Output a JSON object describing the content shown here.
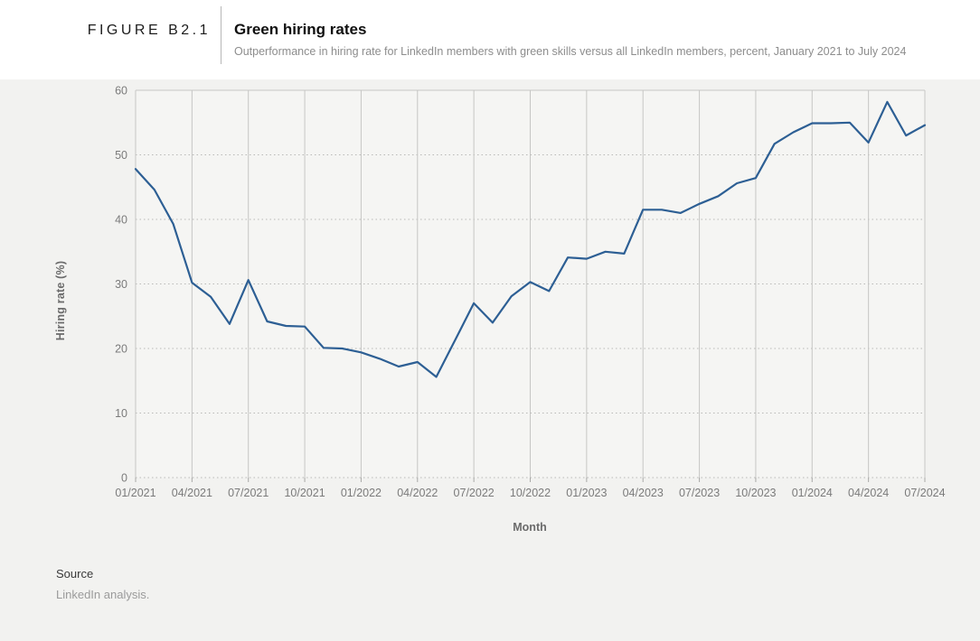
{
  "header": {
    "figure_label": "FIGURE B2.1",
    "title": "Green hiring rates",
    "subtitle": "Outperformance in hiring rate for LinkedIn members with green skills versus all LinkedIn members, percent, January 2021 to July 2024"
  },
  "source": {
    "label": "Source",
    "text": "LinkedIn analysis."
  },
  "colors": {
    "line": "#2d5f94",
    "panel_bg": "#f2f2f0",
    "plot_bg": "#f5f5f3",
    "solid_grid": "#c6c6c4",
    "dotted_grid": "#b9b9b7",
    "tick_text": "#7b7b7b"
  },
  "chart_data": {
    "type": "line",
    "title": "Green hiring rates",
    "xlabel": "Month",
    "ylabel": "Hiring rate (%)",
    "ylim": [
      0,
      60
    ],
    "y_ticks": [
      0,
      10,
      20,
      30,
      40,
      50,
      60
    ],
    "x_tick_labels": [
      "01/2021",
      "04/2021",
      "07/2021",
      "10/2021",
      "01/2022",
      "04/2022",
      "07/2022",
      "10/2022",
      "01/2023",
      "04/2023",
      "07/2023",
      "10/2023",
      "01/2024",
      "04/2024",
      "07/2024"
    ],
    "grid": {
      "vertical": "solid, quarterly",
      "horizontal": "dotted, every 10"
    },
    "legend": "none",
    "line_color": "#2d5f94",
    "x": [
      "01/2021",
      "02/2021",
      "03/2021",
      "04/2021",
      "05/2021",
      "06/2021",
      "07/2021",
      "08/2021",
      "09/2021",
      "10/2021",
      "11/2021",
      "12/2021",
      "01/2022",
      "02/2022",
      "03/2022",
      "04/2022",
      "05/2022",
      "06/2022",
      "07/2022",
      "08/2022",
      "09/2022",
      "10/2022",
      "11/2022",
      "12/2022",
      "01/2023",
      "02/2023",
      "03/2023",
      "04/2023",
      "05/2023",
      "06/2023",
      "07/2023",
      "08/2023",
      "09/2023",
      "10/2023",
      "11/2023",
      "12/2023",
      "01/2024",
      "02/2024",
      "03/2024",
      "04/2024",
      "05/2024",
      "06/2024",
      "07/2024"
    ],
    "values": [
      47.8,
      44.6,
      39.3,
      30.2,
      28.0,
      23.8,
      30.6,
      24.2,
      23.5,
      23.4,
      20.1,
      20.0,
      19.4,
      18.4,
      17.2,
      17.9,
      15.6,
      21.3,
      27.0,
      24.0,
      28.1,
      30.3,
      28.9,
      34.1,
      33.9,
      35.0,
      34.7,
      41.5,
      41.5,
      41.0,
      42.4,
      43.6,
      45.6,
      46.4,
      51.7,
      53.5,
      54.9,
      54.9,
      55.0,
      51.9,
      58.2,
      53.0,
      54.6
    ]
  }
}
